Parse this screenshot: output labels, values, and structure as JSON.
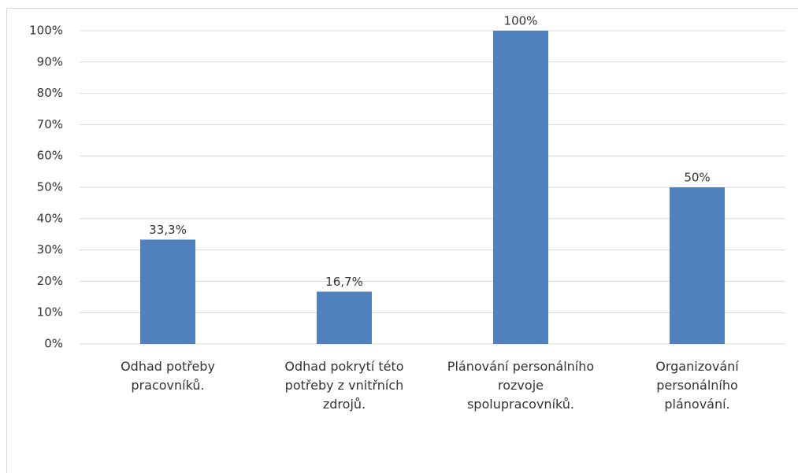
{
  "chart_data": {
    "type": "bar",
    "categories": [
      "Odhad potřeby pracovníků.",
      "Odhad pokrytí této potřeby z vnitřních zdrojů.",
      "Plánování personálního rozvoje spolupracovníků.",
      "Organizování personálního plánování."
    ],
    "values": [
      33.3,
      16.7,
      100,
      50
    ],
    "value_labels": [
      "33,3%",
      "16,7%",
      "100%",
      "50%"
    ],
    "color": "#4f81bd",
    "ylim": [
      0,
      100
    ],
    "yticks": [
      {
        "value": 0,
        "label": "0%"
      },
      {
        "value": 10,
        "label": "10%"
      },
      {
        "value": 20,
        "label": "20%"
      },
      {
        "value": 30,
        "label": "30%"
      },
      {
        "value": 40,
        "label": "40%"
      },
      {
        "value": 50,
        "label": "50%"
      },
      {
        "value": 60,
        "label": "60%"
      },
      {
        "value": 70,
        "label": "70%"
      },
      {
        "value": 80,
        "label": "80%"
      },
      {
        "value": 90,
        "label": "90%"
      },
      {
        "value": 100,
        "label": "100%"
      }
    ],
    "grid": true
  }
}
